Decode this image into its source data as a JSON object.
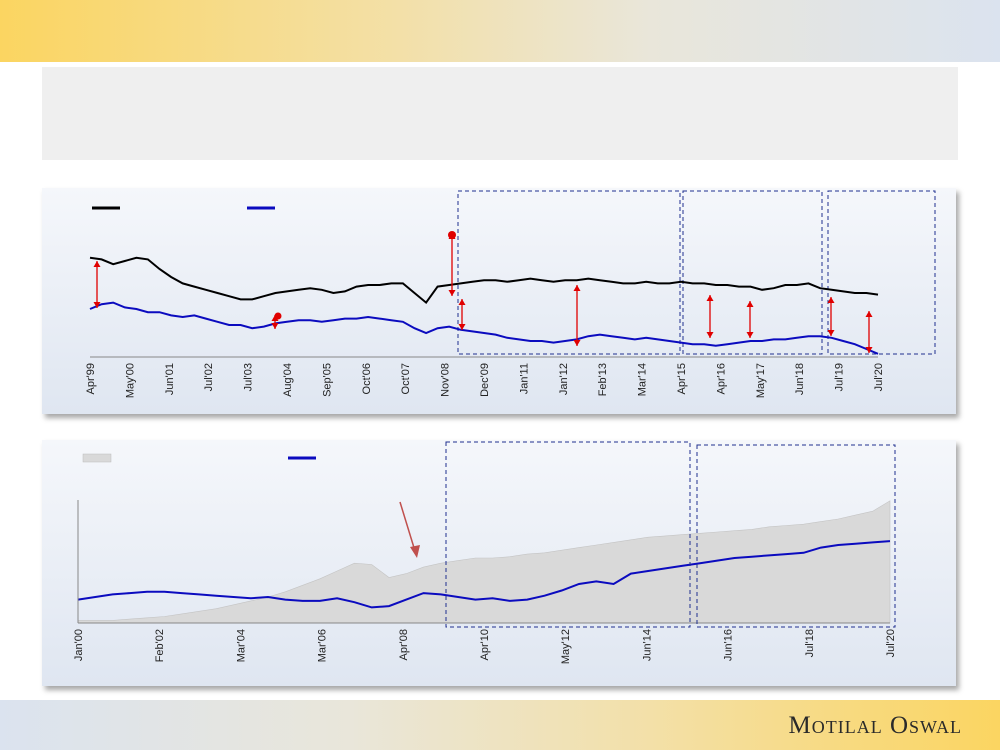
{
  "brand": "Motilal Oswal",
  "colors": {
    "series_black": "#000000",
    "series_blue": "#0b0bbf",
    "area_grey": "#d9d9d9",
    "annotation_red": "#e00000",
    "box_blue": "#1f2f8f"
  },
  "chart_data": [
    {
      "type": "line",
      "x_tick_labels": [
        "Apr'99",
        "May'00",
        "Jun'01",
        "Jul'02",
        "Jul'03",
        "Aug'04",
        "Sep'05",
        "Oct'06",
        "Oct'07",
        "Nov'08",
        "Dec'09",
        "Jan'11",
        "Jan'12",
        "Feb'13",
        "Mar'14",
        "Apr'15",
        "Apr'16",
        "May'17",
        "Jun'18",
        "Jul'19",
        "Jul'20"
      ],
      "legend": [
        {
          "color": "#000000"
        },
        {
          "color": "#0b0bbf"
        }
      ],
      "y_axis_shown": false,
      "grid": false,
      "series": [
        {
          "values": [
            62,
            61,
            58,
            60,
            62,
            61,
            55,
            50,
            46,
            44,
            42,
            40,
            38,
            36,
            36,
            38,
            40,
            41,
            42,
            43,
            42,
            40,
            41,
            44,
            45,
            45,
            46,
            46,
            40,
            34,
            44,
            45,
            46,
            47,
            48,
            48,
            47,
            48,
            49,
            48,
            47,
            48,
            48,
            49,
            48,
            47,
            46,
            46,
            47,
            46,
            46,
            47,
            46,
            46,
            45,
            45,
            44,
            44,
            42,
            43,
            45,
            45,
            46,
            43,
            42,
            41,
            40,
            40,
            39
          ]
        },
        {
          "values": [
            30,
            33,
            34,
            31,
            30,
            28,
            28,
            26,
            25,
            26,
            24,
            22,
            20,
            20,
            18,
            19,
            21,
            22,
            23,
            23,
            22,
            23,
            24,
            24,
            25,
            24,
            23,
            22,
            18,
            15,
            18,
            19,
            17,
            16,
            15,
            14,
            12,
            11,
            10,
            10,
            9,
            10,
            11,
            13,
            14,
            13,
            12,
            11,
            12,
            11,
            10,
            9,
            8,
            8,
            7,
            8,
            9,
            10,
            10,
            11,
            11,
            12,
            13,
            13,
            12,
            10,
            8,
            5,
            2
          ]
        }
      ],
      "highlight_boxes": [
        {
          "from": "Aug'09",
          "to": "Apr'15"
        },
        {
          "from": "Apr'15",
          "to": "Jul'19"
        },
        {
          "from": "Jul'19",
          "to": "Jul'20"
        }
      ]
    },
    {
      "type": "area",
      "x_tick_labels": [
        "Jan'00",
        "Feb'02",
        "Mar'04",
        "Mar'06",
        "Apr'08",
        "Apr'10",
        "May'12",
        "Jun'14",
        "Jun'16",
        "Jul'18",
        "Jul'20"
      ],
      "legend": [
        {
          "kind": "area",
          "color": "#d9d9d9"
        },
        {
          "kind": "line",
          "color": "#0b0bbf"
        }
      ],
      "y_axis_shown": false,
      "grid": false,
      "series": [
        {
          "kind": "area",
          "values": [
            2,
            2,
            2,
            3,
            4,
            5,
            7,
            9,
            11,
            14,
            17,
            20,
            24,
            29,
            34,
            40,
            46,
            45,
            35,
            38,
            43,
            46,
            48,
            50,
            50,
            51,
            53,
            54,
            56,
            58,
            60,
            62,
            64,
            66,
            67,
            68,
            69,
            70,
            71,
            72,
            74,
            75,
            76,
            78,
            80,
            83,
            86,
            94
          ]
        },
        {
          "kind": "line",
          "values": [
            18,
            20,
            22,
            23,
            24,
            24,
            23,
            22,
            21,
            20,
            19,
            20,
            18,
            17,
            17,
            19,
            16,
            12,
            13,
            18,
            23,
            22,
            20,
            18,
            19,
            17,
            18,
            21,
            25,
            30,
            32,
            30,
            38,
            40,
            42,
            44,
            46,
            48,
            50,
            51,
            52,
            53,
            54,
            58,
            60,
            61,
            62,
            63
          ]
        }
      ],
      "highlight_boxes": [
        {
          "from": "Dec'08",
          "to": "Mar'15"
        },
        {
          "from": "Apr'15",
          "to": "Jul'20"
        }
      ]
    }
  ]
}
